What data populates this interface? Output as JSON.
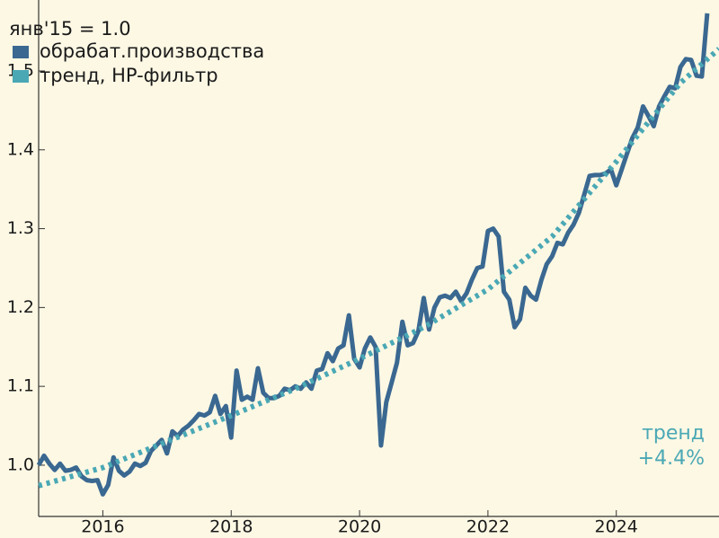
{
  "chart_data": {
    "type": "line",
    "legend_title": "янв'15 = 1.0",
    "annotation": [
      "тренд",
      "+4.4%"
    ],
    "xlim": [
      2015,
      2025.6
    ],
    "ylim": [
      0.935,
      1.59
    ],
    "xticks": [
      2016,
      2018,
      2020,
      2022,
      2024
    ],
    "yticks": [
      {
        "value": 1,
        "label": "1.0"
      },
      1.1,
      1.2,
      1.3,
      1.4,
      1.5
    ],
    "grid": false,
    "legend": "upper left",
    "series": [
      {
        "name": "обрабат.производства",
        "color": "#3a6891",
        "style": "solid",
        "start": 2015,
        "step": 0.08333,
        "values": [
          1.0,
          1.012,
          1.002,
          0.994,
          1.002,
          0.993,
          0.994,
          0.997,
          0.986,
          0.981,
          0.98,
          0.981,
          0.963,
          0.975,
          1.01,
          0.993,
          0.987,
          0.992,
          1.002,
          0.999,
          1.003,
          1.018,
          1.025,
          1.032,
          1.015,
          1.043,
          1.037,
          1.045,
          1.05,
          1.057,
          1.065,
          1.063,
          1.067,
          1.088,
          1.065,
          1.075,
          1.035,
          1.12,
          1.083,
          1.087,
          1.083,
          1.123,
          1.092,
          1.085,
          1.085,
          1.088,
          1.097,
          1.095,
          1.1,
          1.097,
          1.105,
          1.097,
          1.12,
          1.122,
          1.142,
          1.132,
          1.148,
          1.152,
          1.19,
          1.135,
          1.124,
          1.148,
          1.162,
          1.15,
          1.025,
          1.08,
          1.105,
          1.13,
          1.182,
          1.152,
          1.155,
          1.17,
          1.212,
          1.172,
          1.2,
          1.213,
          1.215,
          1.212,
          1.22,
          1.208,
          1.218,
          1.235,
          1.25,
          1.252,
          1.297,
          1.3,
          1.29,
          1.22,
          1.21,
          1.175,
          1.185,
          1.225,
          1.215,
          1.21,
          1.235,
          1.255,
          1.265,
          1.282,
          1.28,
          1.295,
          1.305,
          1.32,
          1.343,
          1.367,
          1.368,
          1.368,
          1.37,
          1.375,
          1.355,
          1.375,
          1.395,
          1.415,
          1.428,
          1.455,
          1.443,
          1.43,
          1.455,
          1.468,
          1.48,
          1.478,
          1.505,
          1.515,
          1.514,
          1.494,
          1.493,
          1.573
        ]
      },
      {
        "name": "тренд, HP-фильтр",
        "color": "#4aa8b5",
        "style": "dotted",
        "x": [
          2015,
          2016,
          2017,
          2018,
          2019,
          2020,
          2021,
          2022,
          2023,
          2024,
          2025,
          2025.6
        ],
        "values": [
          0.974,
          0.997,
          1.03,
          1.063,
          1.097,
          1.135,
          1.175,
          1.223,
          1.29,
          1.385,
          1.485,
          1.528
        ]
      }
    ]
  }
}
